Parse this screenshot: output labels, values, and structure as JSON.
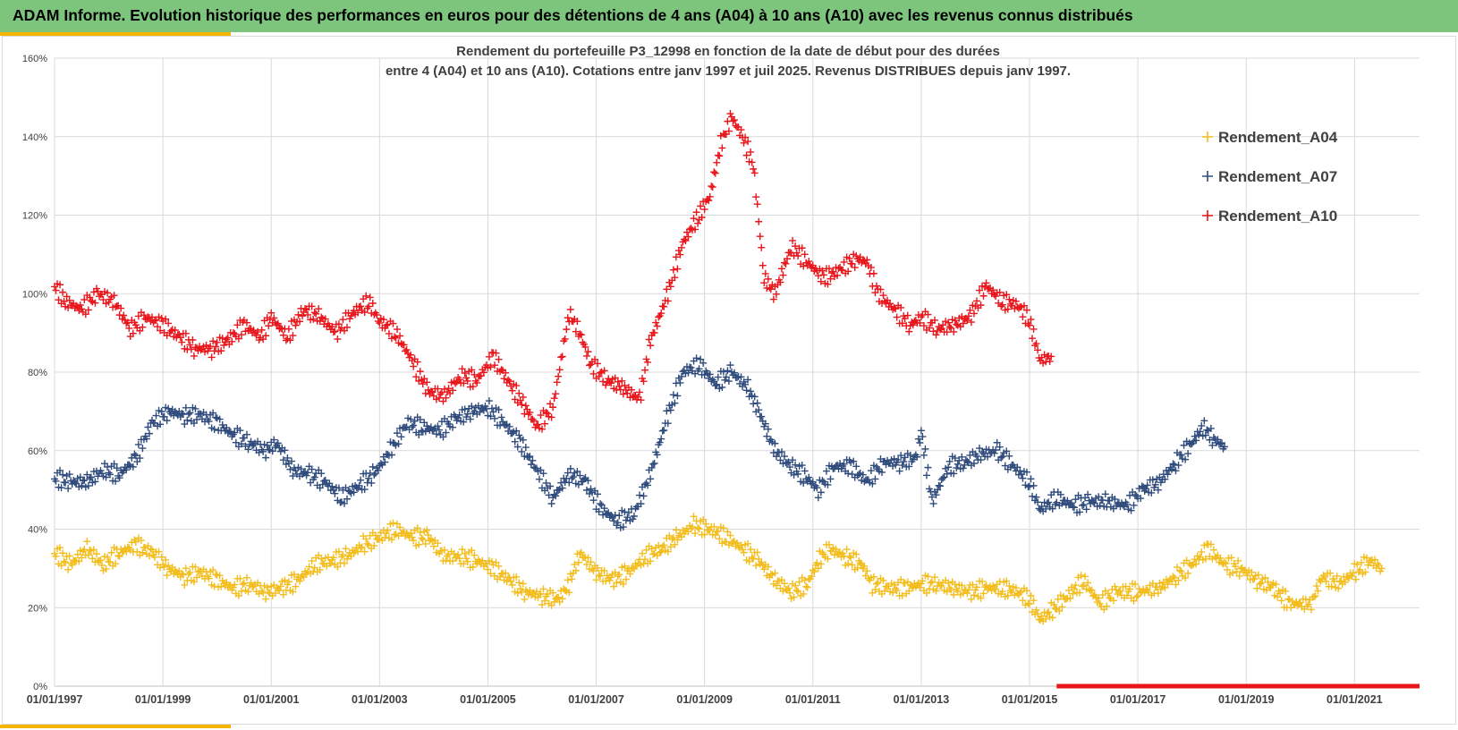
{
  "header": {
    "title": "ADAM Informe. Evolution historique des performances en euros pour des détentions de 4 ans (A04) à 10 ans (A10) avec les revenus connus distribués"
  },
  "colors": {
    "header_bg": "#7dc57d",
    "accent": "#f4b400",
    "A04": "#f2bd1d",
    "A07": "#2f4b7c",
    "A10": "#e8151b"
  },
  "chart_data": {
    "type": "scatter",
    "title": [
      "Rendement du portefeuille P3_12998 en fonction de la date de début pour des durées",
      "entre 4 (A04) et 10 ans (A10). Cotations entre janv 1997 et juil 2025. Revenus DISTRIBUES depuis janv 1997."
    ],
    "xlabel": "",
    "ylabel": "",
    "marker": "+",
    "x_range": [
      1997.0,
      2022.2
    ],
    "ylim": [
      0,
      160
    ],
    "y_unit": "%",
    "y_ticks": [
      0,
      20,
      40,
      60,
      80,
      100,
      120,
      140,
      160
    ],
    "y_tick_labels": [
      "0%",
      "20%",
      "40%",
      "60%",
      "80%",
      "100%",
      "120%",
      "140%",
      "160%"
    ],
    "x_ticks": [
      1997.0,
      1999.0,
      2001.0,
      2003.0,
      2005.0,
      2007.0,
      2009.0,
      2011.0,
      2013.0,
      2015.0,
      2017.0,
      2019.0,
      2021.0
    ],
    "x_tick_labels": [
      "01/01/1997",
      "01/01/1999",
      "01/01/2001",
      "01/01/2003",
      "01/01/2005",
      "01/01/2007",
      "01/01/2009",
      "01/01/2011",
      "01/01/2013",
      "01/01/2015",
      "01/01/2017",
      "01/01/2019",
      "01/01/2021"
    ],
    "grid": true,
    "legend_position": "top-right",
    "series": [
      {
        "name": "Rendement_A04",
        "color": "#f2bd1d",
        "points": [
          [
            1997.0,
            34
          ],
          [
            1997.3,
            31
          ],
          [
            1997.6,
            35
          ],
          [
            1997.9,
            31
          ],
          [
            1998.2,
            34
          ],
          [
            1998.5,
            36
          ],
          [
            1998.8,
            34
          ],
          [
            1999.1,
            30
          ],
          [
            1999.4,
            28
          ],
          [
            1999.7,
            29
          ],
          [
            2000.0,
            27
          ],
          [
            2000.3,
            25
          ],
          [
            2000.6,
            26
          ],
          [
            2000.9,
            24
          ],
          [
            2001.2,
            25
          ],
          [
            2001.5,
            27
          ],
          [
            2001.8,
            31
          ],
          [
            2002.1,
            32
          ],
          [
            2002.4,
            33
          ],
          [
            2002.7,
            36
          ],
          [
            2003.0,
            38
          ],
          [
            2003.3,
            40
          ],
          [
            2003.6,
            38
          ],
          [
            2003.9,
            38
          ],
          [
            2004.2,
            33
          ],
          [
            2004.5,
            33
          ],
          [
            2004.8,
            32
          ],
          [
            2005.1,
            30
          ],
          [
            2005.4,
            27
          ],
          [
            2005.7,
            24
          ],
          [
            2006.0,
            23
          ],
          [
            2006.3,
            22
          ],
          [
            2006.5,
            26
          ],
          [
            2006.7,
            34
          ],
          [
            2007.0,
            29
          ],
          [
            2007.3,
            27
          ],
          [
            2007.6,
            29
          ],
          [
            2007.9,
            33
          ],
          [
            2008.2,
            35
          ],
          [
            2008.5,
            38
          ],
          [
            2008.8,
            41
          ],
          [
            2009.1,
            40
          ],
          [
            2009.4,
            38
          ],
          [
            2009.7,
            35
          ],
          [
            2010.0,
            32
          ],
          [
            2010.3,
            27
          ],
          [
            2010.6,
            24
          ],
          [
            2010.9,
            26
          ],
          [
            2011.1,
            32
          ],
          [
            2011.3,
            35
          ],
          [
            2011.6,
            33
          ],
          [
            2011.9,
            31
          ],
          [
            2012.1,
            26
          ],
          [
            2012.4,
            25
          ],
          [
            2012.7,
            25
          ],
          [
            2013.0,
            26
          ],
          [
            2013.3,
            26
          ],
          [
            2013.6,
            25
          ],
          [
            2013.9,
            24
          ],
          [
            2014.2,
            25
          ],
          [
            2014.5,
            25
          ],
          [
            2014.8,
            24
          ],
          [
            2015.0,
            22
          ],
          [
            2015.2,
            17
          ],
          [
            2015.4,
            19
          ],
          [
            2015.7,
            23
          ],
          [
            2016.0,
            27
          ],
          [
            2016.3,
            21
          ],
          [
            2016.6,
            24
          ],
          [
            2017.0,
            24
          ],
          [
            2017.4,
            25
          ],
          [
            2017.7,
            28
          ],
          [
            2018.0,
            31
          ],
          [
            2018.3,
            35
          ],
          [
            2018.6,
            31
          ],
          [
            2018.9,
            30
          ],
          [
            2019.2,
            27
          ],
          [
            2019.5,
            25
          ],
          [
            2019.8,
            21
          ],
          [
            2020.2,
            21
          ],
          [
            2020.4,
            28
          ],
          [
            2020.7,
            26
          ],
          [
            2021.0,
            29
          ],
          [
            2021.3,
            32
          ],
          [
            2021.5,
            30
          ]
        ]
      },
      {
        "name": "Rendement_A07",
        "color": "#2f4b7c",
        "points": [
          [
            1997.0,
            53
          ],
          [
            1997.3,
            52
          ],
          [
            1997.6,
            52
          ],
          [
            1997.9,
            55
          ],
          [
            1998.2,
            54
          ],
          [
            1998.5,
            58
          ],
          [
            1998.8,
            67
          ],
          [
            1999.1,
            70
          ],
          [
            1999.4,
            69
          ],
          [
            1999.7,
            69
          ],
          [
            2000.0,
            67
          ],
          [
            2000.3,
            64
          ],
          [
            2000.6,
            62
          ],
          [
            2000.9,
            60
          ],
          [
            2001.1,
            62
          ],
          [
            2001.4,
            55
          ],
          [
            2001.7,
            54
          ],
          [
            2002.0,
            52
          ],
          [
            2002.3,
            48
          ],
          [
            2002.6,
            51
          ],
          [
            2002.9,
            54
          ],
          [
            2003.2,
            60
          ],
          [
            2003.5,
            67
          ],
          [
            2003.8,
            66
          ],
          [
            2004.1,
            65
          ],
          [
            2004.4,
            68
          ],
          [
            2004.7,
            70
          ],
          [
            2005.0,
            71
          ],
          [
            2005.3,
            67
          ],
          [
            2005.6,
            62
          ],
          [
            2005.9,
            55
          ],
          [
            2006.2,
            48
          ],
          [
            2006.5,
            54
          ],
          [
            2006.8,
            52
          ],
          [
            2007.1,
            45
          ],
          [
            2007.4,
            42
          ],
          [
            2007.7,
            44
          ],
          [
            2008.0,
            54
          ],
          [
            2008.3,
            68
          ],
          [
            2008.6,
            80
          ],
          [
            2008.9,
            82
          ],
          [
            2009.2,
            77
          ],
          [
            2009.5,
            80
          ],
          [
            2009.8,
            76
          ],
          [
            2010.0,
            70
          ],
          [
            2010.3,
            60
          ],
          [
            2010.6,
            56
          ],
          [
            2010.9,
            53
          ],
          [
            2011.1,
            50
          ],
          [
            2011.4,
            56
          ],
          [
            2011.7,
            56
          ],
          [
            2012.0,
            52
          ],
          [
            2012.3,
            57
          ],
          [
            2012.6,
            57
          ],
          [
            2012.9,
            58
          ],
          [
            2013.0,
            65
          ],
          [
            2013.2,
            47
          ],
          [
            2013.5,
            56
          ],
          [
            2013.8,
            57
          ],
          [
            2014.1,
            59
          ],
          [
            2014.4,
            60
          ],
          [
            2014.7,
            56
          ],
          [
            2015.0,
            52
          ],
          [
            2015.2,
            45
          ],
          [
            2015.5,
            48
          ],
          [
            2015.8,
            46
          ],
          [
            2016.1,
            47
          ],
          [
            2016.4,
            47
          ],
          [
            2016.8,
            46
          ],
          [
            2017.1,
            50
          ],
          [
            2017.4,
            52
          ],
          [
            2017.7,
            57
          ],
          [
            2018.0,
            62
          ],
          [
            2018.2,
            66
          ],
          [
            2018.4,
            63
          ],
          [
            2018.6,
            61
          ]
        ]
      },
      {
        "name": "Rendement_A10",
        "color": "#e8151b",
        "points": [
          [
            1997.0,
            102
          ],
          [
            1997.2,
            98
          ],
          [
            1997.5,
            96
          ],
          [
            1997.8,
            100
          ],
          [
            1998.1,
            98
          ],
          [
            1998.4,
            91
          ],
          [
            1998.7,
            94
          ],
          [
            1999.0,
            92
          ],
          [
            1999.3,
            89
          ],
          [
            1999.6,
            86
          ],
          [
            1999.9,
            86
          ],
          [
            2000.2,
            88
          ],
          [
            2000.5,
            92
          ],
          [
            2000.8,
            89
          ],
          [
            2001.0,
            94
          ],
          [
            2001.3,
            89
          ],
          [
            2001.6,
            96
          ],
          [
            2001.9,
            94
          ],
          [
            2002.2,
            90
          ],
          [
            2002.5,
            95
          ],
          [
            2002.8,
            98
          ],
          [
            2003.0,
            93
          ],
          [
            2003.3,
            90
          ],
          [
            2003.6,
            83
          ],
          [
            2003.9,
            75
          ],
          [
            2004.2,
            74
          ],
          [
            2004.5,
            79
          ],
          [
            2004.8,
            78
          ],
          [
            2005.1,
            84
          ],
          [
            2005.4,
            77
          ],
          [
            2005.7,
            71
          ],
          [
            2005.9,
            66
          ],
          [
            2006.2,
            71
          ],
          [
            2006.5,
            95
          ],
          [
            2006.7,
            90
          ],
          [
            2006.9,
            82
          ],
          [
            2007.2,
            78
          ],
          [
            2007.5,
            76
          ],
          [
            2007.8,
            73
          ],
          [
            2008.0,
            88
          ],
          [
            2008.3,
            99
          ],
          [
            2008.6,
            113
          ],
          [
            2008.9,
            120
          ],
          [
            2009.1,
            125
          ],
          [
            2009.3,
            138
          ],
          [
            2009.5,
            145
          ],
          [
            2009.7,
            140
          ],
          [
            2009.9,
            133
          ],
          [
            2010.1,
            104
          ],
          [
            2010.3,
            100
          ],
          [
            2010.6,
            112
          ],
          [
            2010.9,
            108
          ],
          [
            2011.2,
            104
          ],
          [
            2011.5,
            106
          ],
          [
            2011.8,
            109
          ],
          [
            2012.0,
            108
          ],
          [
            2012.2,
            100
          ],
          [
            2012.5,
            96
          ],
          [
            2012.8,
            92
          ],
          [
            2013.0,
            94
          ],
          [
            2013.3,
            91
          ],
          [
            2013.6,
            92
          ],
          [
            2013.9,
            94
          ],
          [
            2014.2,
            102
          ],
          [
            2014.5,
            98
          ],
          [
            2014.8,
            97
          ],
          [
            2015.0,
            93
          ],
          [
            2015.2,
            83
          ],
          [
            2015.4,
            84
          ]
        ]
      },
      {
        "name": "",
        "color": "#e8151b",
        "line_only": true,
        "points": [
          [
            2015.5,
            0
          ],
          [
            2022.2,
            0
          ]
        ]
      }
    ]
  }
}
